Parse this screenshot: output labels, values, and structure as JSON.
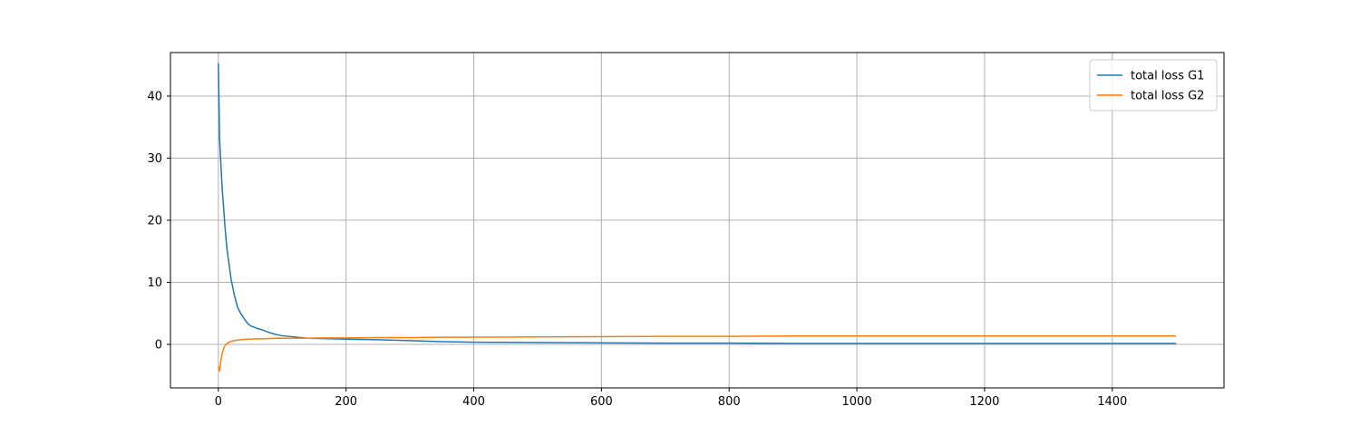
{
  "chart_data": {
    "type": "line",
    "title": "",
    "xlabel": "",
    "ylabel": "",
    "xlim": [
      -75,
      1575
    ],
    "ylim": [
      -7,
      47
    ],
    "xticks": [
      0,
      200,
      400,
      600,
      800,
      1000,
      1200,
      1400
    ],
    "yticks": [
      0,
      10,
      20,
      30,
      40
    ],
    "grid": true,
    "legend_position": "top-right",
    "series": [
      {
        "name": "total loss G1",
        "color": "#1f77b4",
        "x": [
          0,
          2,
          4,
          6,
          8,
          10,
          12,
          14,
          16,
          18,
          20,
          25,
          30,
          35,
          40,
          45,
          50,
          60,
          70,
          80,
          90,
          100,
          120,
          140,
          160,
          180,
          200,
          250,
          300,
          350,
          400,
          500,
          600,
          700,
          800,
          900,
          1000,
          1100,
          1200,
          1300,
          1400,
          1500
        ],
        "y": [
          45.3,
          33.0,
          29.0,
          25.0,
          22.5,
          19.5,
          17.0,
          15.0,
          13.5,
          12.0,
          10.5,
          8.0,
          6.0,
          5.0,
          4.2,
          3.5,
          3.0,
          2.6,
          2.3,
          1.9,
          1.6,
          1.4,
          1.2,
          1.0,
          0.95,
          0.9,
          0.85,
          0.75,
          0.6,
          0.45,
          0.35,
          0.3,
          0.25,
          0.2,
          0.2,
          0.15,
          0.15,
          0.15,
          0.15,
          0.15,
          0.15,
          0.15
        ]
      },
      {
        "name": "total loss G2",
        "color": "#ff7f0e",
        "x": [
          0,
          2,
          4,
          6,
          8,
          10,
          12,
          14,
          16,
          18,
          20,
          25,
          30,
          35,
          40,
          50,
          60,
          70,
          80,
          90,
          100,
          120,
          140,
          160,
          180,
          200,
          250,
          300,
          350,
          400,
          500,
          600,
          700,
          800,
          900,
          1000,
          1100,
          1200,
          1300,
          1400,
          1500
        ],
        "y": [
          -3.5,
          -4.3,
          -2.5,
          -1.5,
          -0.8,
          -0.3,
          0.0,
          0.2,
          0.3,
          0.4,
          0.5,
          0.6,
          0.7,
          0.75,
          0.8,
          0.85,
          0.9,
          0.9,
          0.95,
          1.0,
          1.0,
          1.0,
          1.0,
          1.05,
          1.05,
          1.05,
          1.1,
          1.1,
          1.15,
          1.15,
          1.2,
          1.25,
          1.3,
          1.3,
          1.35,
          1.35,
          1.35,
          1.35,
          1.35,
          1.35,
          1.35
        ]
      }
    ]
  }
}
